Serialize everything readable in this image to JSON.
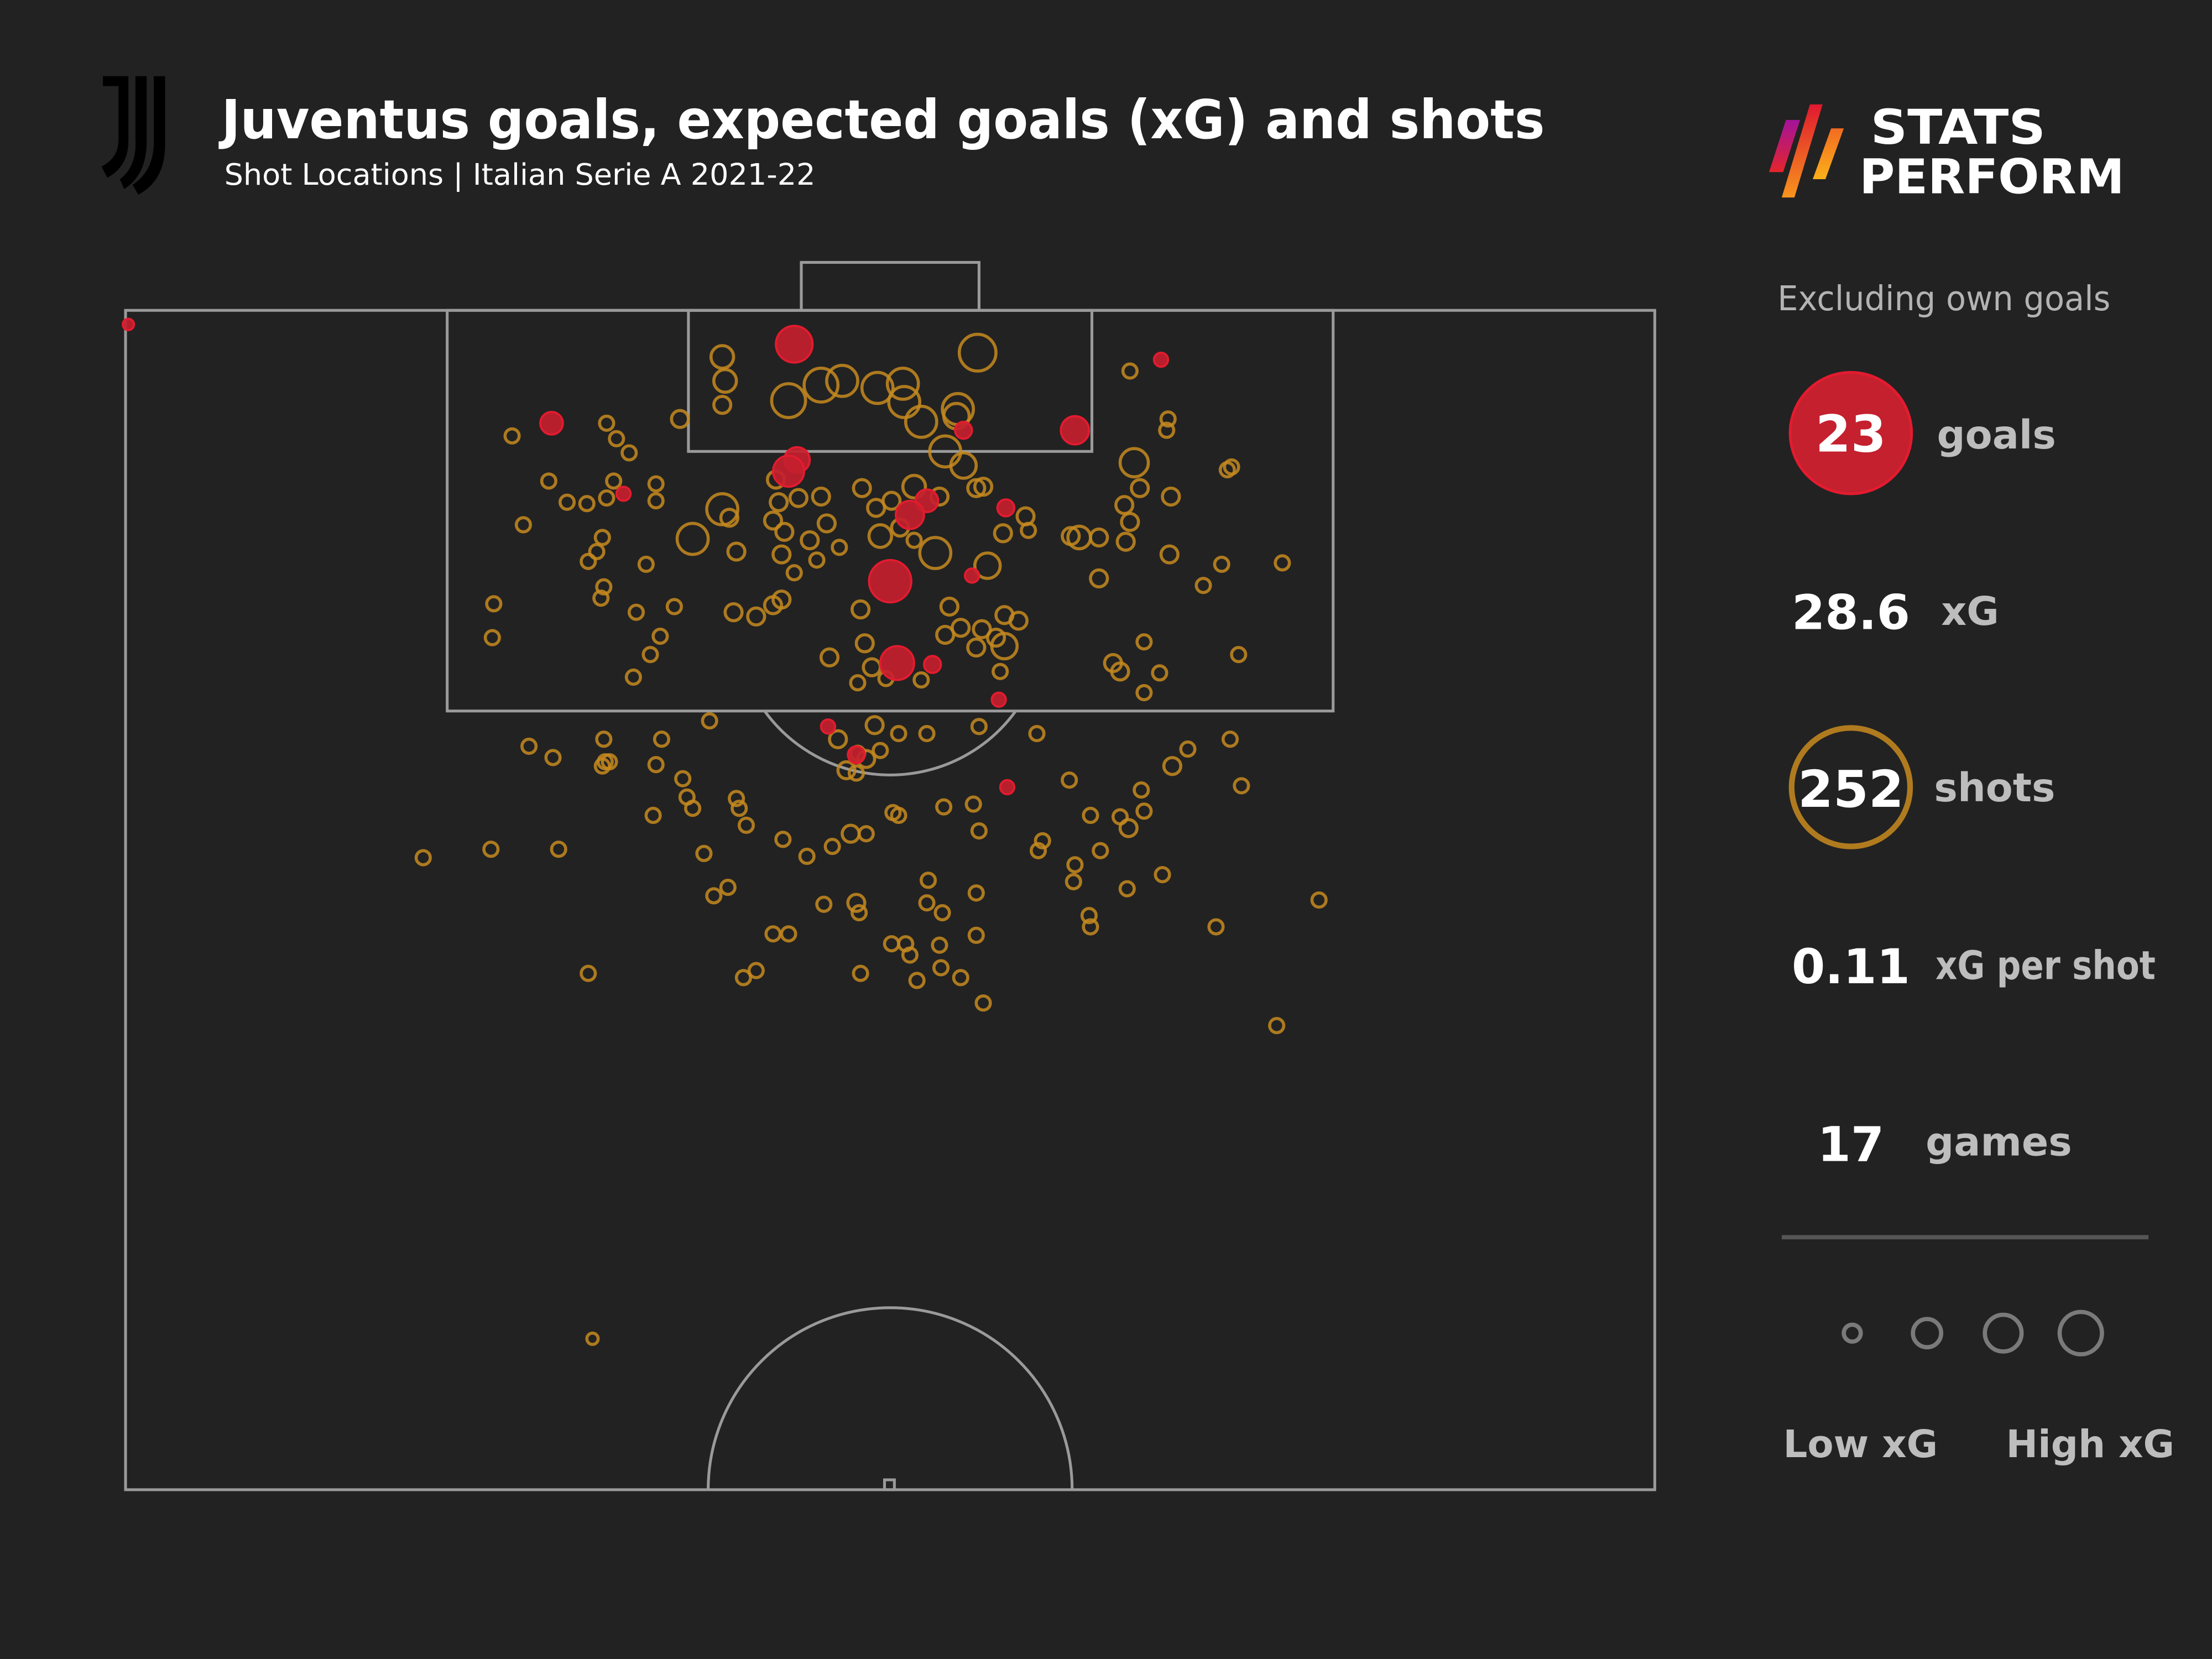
{
  "header": {
    "title": "Juventus goals, expected goals (xG) and shots",
    "subtitle": "Shot Locations | Italian Serie A 2021-22",
    "team_logo": "juventus-j-logo"
  },
  "brand": {
    "line1": "STATS",
    "line2": "PERFORM"
  },
  "stats_panel": {
    "note": "Excluding own goals",
    "goals": {
      "value": "23",
      "label": "goals"
    },
    "xg": {
      "value": "28.6",
      "label": "xG"
    },
    "shots": {
      "value": "252",
      "label": "shots"
    },
    "xg_per_shot": {
      "value": "0.11",
      "label": "xG per shot"
    },
    "games": {
      "value": "17",
      "label": "games"
    },
    "legend": {
      "low": "Low xG",
      "high": "High xG"
    }
  },
  "colors": {
    "background": "#222222",
    "goal": "#c4202e",
    "goal_stroke": "#e31b2f",
    "shot": "#c68a1e",
    "pitch_line": "#9a9a9a",
    "text": "#ffffff",
    "muted_text": "#bdbdbd"
  },
  "chart_data": {
    "type": "scatter",
    "title": "Juventus goals, expected goals (xG) and shots",
    "subtitle": "Shot Locations | Italian Serie A 2021-22",
    "xlabel": "",
    "ylabel": "",
    "grid": false,
    "legend_position": "right",
    "legend": [
      "goals (filled red)",
      "shots (orange rings)",
      "marker size = xG (Low xG to High xG)"
    ],
    "summary": {
      "goals": 23,
      "xG": 28.6,
      "shots": 252,
      "xG_per_shot": 0.11,
      "games": 17,
      "note": "Excluding own goals"
    },
    "coordinate_space": "pixel positions on 1568x1176 canvas (half-pitch, goal at top)",
    "point_format": [
      "x",
      "y",
      "radius",
      "is_goal"
    ],
    "points": [
      [
        91,
        230,
        4,
        1
      ],
      [
        563,
        244,
        13,
        1
      ],
      [
        823,
        255,
        5,
        1
      ],
      [
        391,
        300,
        8,
        1
      ],
      [
        762,
        305,
        10,
        1
      ],
      [
        683,
        305,
        6,
        1
      ],
      [
        565,
        326,
        9,
        1
      ],
      [
        559,
        334,
        11,
        1
      ],
      [
        442,
        350,
        5,
        1
      ],
      [
        713,
        360,
        6,
        1
      ],
      [
        657,
        355,
        8,
        1
      ],
      [
        645,
        365,
        10,
        1
      ],
      [
        631,
        412,
        15,
        1
      ],
      [
        689,
        408,
        5,
        1
      ],
      [
        636,
        470,
        12,
        1
      ],
      [
        661,
        471,
        6,
        1
      ],
      [
        708,
        496,
        5,
        1
      ],
      [
        587,
        515,
        5,
        1
      ],
      [
        607,
        535,
        6,
        1
      ],
      [
        714,
        558,
        5,
        1
      ],
      [
        512,
        253,
        8,
        0
      ],
      [
        514,
        270,
        8,
        0
      ],
      [
        512,
        287,
        6,
        0
      ],
      [
        693,
        250,
        13,
        0
      ],
      [
        559,
        284,
        12,
        0
      ],
      [
        582,
        273,
        12,
        0
      ],
      [
        597,
        270,
        11,
        0
      ],
      [
        622,
        275,
        11,
        0
      ],
      [
        640,
        272,
        11,
        0
      ],
      [
        641,
        285,
        11,
        0
      ],
      [
        653,
        299,
        11,
        0
      ],
      [
        679,
        290,
        11,
        0
      ],
      [
        678,
        295,
        9,
        0
      ],
      [
        670,
        320,
        11,
        0
      ],
      [
        683,
        330,
        9,
        0
      ],
      [
        482,
        297,
        6,
        0
      ],
      [
        363,
        309,
        5,
        0
      ],
      [
        430,
        300,
        5,
        0
      ],
      [
        437,
        311,
        5,
        0
      ],
      [
        446,
        321,
        5,
        0
      ],
      [
        389,
        341,
        5,
        0
      ],
      [
        435,
        341,
        5,
        0
      ],
      [
        402,
        356,
        5,
        0
      ],
      [
        416,
        357,
        5,
        0
      ],
      [
        430,
        353,
        5,
        0
      ],
      [
        371,
        372,
        5,
        0
      ],
      [
        427,
        381,
        5,
        0
      ],
      [
        423,
        391,
        5,
        0
      ],
      [
        417,
        398,
        5,
        0
      ],
      [
        465,
        343,
        5,
        0
      ],
      [
        465,
        355,
        5,
        0
      ],
      [
        512,
        361,
        11,
        0
      ],
      [
        517,
        367,
        6,
        0
      ],
      [
        491,
        382,
        11,
        0
      ],
      [
        522,
        391,
        6,
        0
      ],
      [
        458,
        400,
        5,
        0
      ],
      [
        428,
        416,
        5,
        0
      ],
      [
        426,
        424,
        5,
        0
      ],
      [
        451,
        434,
        5,
        0
      ],
      [
        478,
        430,
        5,
        0
      ],
      [
        468,
        451,
        5,
        0
      ],
      [
        461,
        464,
        5,
        0
      ],
      [
        449,
        480,
        5,
        0
      ],
      [
        350,
        428,
        5,
        0
      ],
      [
        349,
        452,
        5,
        0
      ],
      [
        550,
        340,
        6,
        0
      ],
      [
        552,
        356,
        6,
        0
      ],
      [
        566,
        353,
        6,
        0
      ],
      [
        582,
        352,
        6,
        0
      ],
      [
        548,
        369,
        6,
        0
      ],
      [
        556,
        377,
        6,
        0
      ],
      [
        574,
        383,
        6,
        0
      ],
      [
        586,
        371,
        6,
        0
      ],
      [
        595,
        388,
        5,
        0
      ],
      [
        554,
        393,
        6,
        0
      ],
      [
        579,
        397,
        5,
        0
      ],
      [
        563,
        406,
        5,
        0
      ],
      [
        611,
        346,
        6,
        0
      ],
      [
        621,
        360,
        6,
        0
      ],
      [
        632,
        355,
        6,
        0
      ],
      [
        624,
        380,
        8,
        0
      ],
      [
        638,
        374,
        6,
        0
      ],
      [
        648,
        383,
        5,
        0
      ],
      [
        663,
        392,
        11,
        0
      ],
      [
        648,
        345,
        8,
        0
      ],
      [
        666,
        352,
        6,
        0
      ],
      [
        692,
        346,
        6,
        0
      ],
      [
        697,
        345,
        6,
        0
      ],
      [
        700,
        401,
        9,
        0
      ],
      [
        711,
        378,
        6,
        0
      ],
      [
        727,
        366,
        6,
        0
      ],
      [
        729,
        376,
        5,
        0
      ],
      [
        759,
        380,
        6,
        0
      ],
      [
        765,
        381,
        8,
        0
      ],
      [
        779,
        381,
        6,
        0
      ],
      [
        804,
        328,
        10,
        0
      ],
      [
        808,
        346,
        6,
        0
      ],
      [
        830,
        352,
        6,
        0
      ],
      [
        797,
        358,
        6,
        0
      ],
      [
        801,
        370,
        6,
        0
      ],
      [
        798,
        384,
        6,
        0
      ],
      [
        829,
        393,
        6,
        0
      ],
      [
        853,
        415,
        5,
        0
      ],
      [
        866,
        400,
        5,
        0
      ],
      [
        909,
        399,
        5,
        0
      ],
      [
        870,
        333,
        5,
        0
      ],
      [
        873,
        331,
        5,
        0
      ],
      [
        801,
        263,
        5,
        0
      ],
      [
        828,
        297,
        5,
        0
      ],
      [
        827,
        305,
        5,
        0
      ],
      [
        779,
        410,
        6,
        0
      ],
      [
        789,
        470,
        6,
        0
      ],
      [
        794,
        476,
        6,
        0
      ],
      [
        822,
        477,
        5,
        0
      ],
      [
        811,
        491,
        5,
        0
      ],
      [
        811,
        455,
        5,
        0
      ],
      [
        878,
        464,
        5,
        0
      ],
      [
        520,
        434,
        6,
        0
      ],
      [
        536,
        437,
        6,
        0
      ],
      [
        548,
        429,
        6,
        0
      ],
      [
        554,
        425,
        6,
        0
      ],
      [
        610,
        432,
        6,
        0
      ],
      [
        673,
        430,
        6,
        0
      ],
      [
        681,
        445,
        6,
        0
      ],
      [
        670,
        450,
        6,
        0
      ],
      [
        696,
        446,
        6,
        0
      ],
      [
        712,
        436,
        6,
        0
      ],
      [
        722,
        440,
        6,
        0
      ],
      [
        706,
        452,
        6,
        0
      ],
      [
        712,
        458,
        9,
        0
      ],
      [
        692,
        459,
        6,
        0
      ],
      [
        709,
        476,
        5,
        0
      ],
      [
        613,
        456,
        6,
        0
      ],
      [
        588,
        466,
        6,
        0
      ],
      [
        618,
        473,
        6,
        0
      ],
      [
        628,
        481,
        5,
        0
      ],
      [
        608,
        484,
        5,
        0
      ],
      [
        653,
        482,
        5,
        0
      ],
      [
        503,
        511,
        5,
        0
      ],
      [
        375,
        529,
        5,
        0
      ],
      [
        392,
        537,
        5,
        0
      ],
      [
        428,
        524,
        5,
        0
      ],
      [
        429,
        540,
        5,
        0
      ],
      [
        427,
        543,
        5,
        0
      ],
      [
        432,
        540,
        5,
        0
      ],
      [
        469,
        524,
        5,
        0
      ],
      [
        465,
        542,
        5,
        0
      ],
      [
        594,
        524,
        6,
        0
      ],
      [
        620,
        514,
        6,
        0
      ],
      [
        637,
        520,
        5,
        0
      ],
      [
        657,
        520,
        5,
        0
      ],
      [
        608,
        534,
        5,
        0
      ],
      [
        614,
        538,
        6,
        0
      ],
      [
        624,
        532,
        5,
        0
      ],
      [
        600,
        546,
        6,
        0
      ],
      [
        607,
        548,
        5,
        0
      ],
      [
        694,
        515,
        5,
        0
      ],
      [
        735,
        520,
        5,
        0
      ],
      [
        872,
        524,
        5,
        0
      ],
      [
        842,
        531,
        5,
        0
      ],
      [
        831,
        543,
        6,
        0
      ],
      [
        880,
        557,
        5,
        0
      ],
      [
        484,
        552,
        5,
        0
      ],
      [
        487,
        565,
        5,
        0
      ],
      [
        491,
        573,
        5,
        0
      ],
      [
        522,
        566,
        5,
        0
      ],
      [
        524,
        573,
        5,
        0
      ],
      [
        529,
        585,
        5,
        0
      ],
      [
        463,
        578,
        5,
        0
      ],
      [
        555,
        595,
        5,
        0
      ],
      [
        572,
        607,
        5,
        0
      ],
      [
        590,
        600,
        5,
        0
      ],
      [
        603,
        591,
        6,
        0
      ],
      [
        614,
        591,
        5,
        0
      ],
      [
        633,
        576,
        5,
        0
      ],
      [
        637,
        578,
        5,
        0
      ],
      [
        669,
        572,
        5,
        0
      ],
      [
        694,
        589,
        5,
        0
      ],
      [
        690,
        570,
        5,
        0
      ],
      [
        758,
        553,
        5,
        0
      ],
      [
        773,
        578,
        5,
        0
      ],
      [
        794,
        579,
        5,
        0
      ],
      [
        800,
        587,
        6,
        0
      ],
      [
        811,
        575,
        5,
        0
      ],
      [
        809,
        560,
        5,
        0
      ],
      [
        739,
        596,
        5,
        0
      ],
      [
        736,
        603,
        5,
        0
      ],
      [
        762,
        613,
        5,
        0
      ],
      [
        761,
        625,
        5,
        0
      ],
      [
        780,
        603,
        5,
        0
      ],
      [
        799,
        630,
        5,
        0
      ],
      [
        824,
        620,
        5,
        0
      ],
      [
        862,
        657,
        5,
        0
      ],
      [
        935,
        638,
        5,
        0
      ],
      [
        905,
        727,
        5,
        0
      ],
      [
        300,
        608,
        5,
        0
      ],
      [
        348,
        602,
        5,
        0
      ],
      [
        396,
        602,
        5,
        0
      ],
      [
        499,
        605,
        5,
        0
      ],
      [
        516,
        629,
        5,
        0
      ],
      [
        506,
        635,
        5,
        0
      ],
      [
        584,
        641,
        5,
        0
      ],
      [
        607,
        640,
        6,
        0
      ],
      [
        609,
        647,
        5,
        0
      ],
      [
        658,
        624,
        5,
        0
      ],
      [
        657,
        640,
        5,
        0
      ],
      [
        668,
        647,
        5,
        0
      ],
      [
        692,
        633,
        5,
        0
      ],
      [
        772,
        649,
        5,
        0
      ],
      [
        773,
        657,
        5,
        0
      ],
      [
        548,
        662,
        5,
        0
      ],
      [
        559,
        662,
        5,
        0
      ],
      [
        632,
        669,
        5,
        0
      ],
      [
        642,
        669,
        5,
        0
      ],
      [
        645,
        677,
        5,
        0
      ],
      [
        666,
        670,
        5,
        0
      ],
      [
        692,
        663,
        5,
        0
      ],
      [
        527,
        693,
        5,
        0
      ],
      [
        536,
        688,
        5,
        0
      ],
      [
        610,
        690,
        5,
        0
      ],
      [
        650,
        695,
        5,
        0
      ],
      [
        667,
        686,
        5,
        0
      ],
      [
        681,
        693,
        5,
        0
      ],
      [
        697,
        711,
        5,
        0
      ],
      [
        417,
        690,
        5,
        0
      ],
      [
        420,
        949,
        4,
        0
      ]
    ]
  }
}
